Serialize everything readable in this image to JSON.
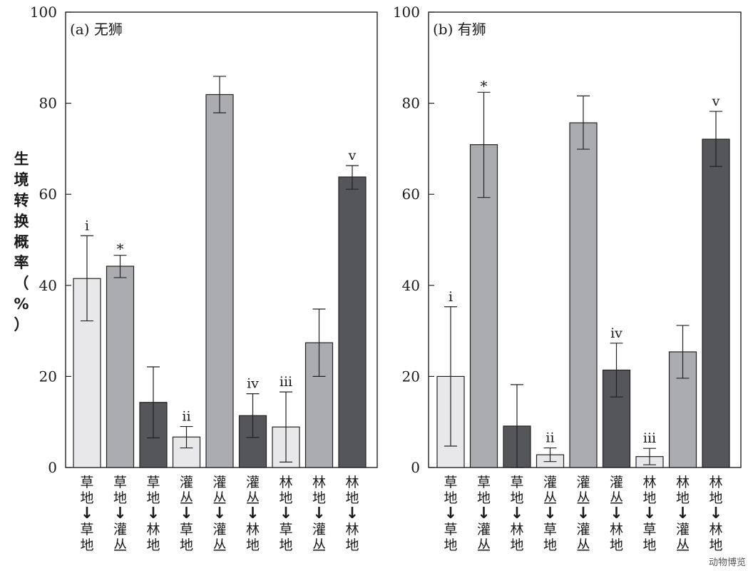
{
  "chart_data": {
    "type": "bar",
    "ylabel": "生境转换概率（%）",
    "ylim": [
      0,
      100
    ],
    "yticks": [
      0,
      20,
      40,
      60,
      80,
      100
    ],
    "categories": [
      "草地→草地",
      "草地→灌丛",
      "草地→林地",
      "灌丛→草地",
      "灌丛→灌丛",
      "灌丛→林地",
      "林地→草地",
      "林地→灌丛",
      "林地→林地"
    ],
    "category_lines": [
      [
        "草",
        "地",
        "草",
        "地"
      ],
      [
        "草",
        "地",
        "灌",
        "丛"
      ],
      [
        "草",
        "地",
        "林",
        "地"
      ],
      [
        "灌",
        "丛",
        "草",
        "地"
      ],
      [
        "灌",
        "丛",
        "灌",
        "丛"
      ],
      [
        "灌",
        "丛",
        "林",
        "地"
      ],
      [
        "林",
        "地",
        "草",
        "地"
      ],
      [
        "林",
        "地",
        "灌",
        "丛"
      ],
      [
        "林",
        "地",
        "林",
        "地"
      ]
    ],
    "colors": {
      "to_grass": "#e8e8ea",
      "to_shrub": "#abacb0",
      "to_forest": "#54565a",
      "edge": "#222222"
    },
    "bar_tones": [
      "to_grass",
      "to_shrub",
      "to_forest",
      "to_grass",
      "to_shrub",
      "to_forest",
      "to_grass",
      "to_shrub",
      "to_forest"
    ],
    "panels": [
      {
        "title": "(a) 无狮",
        "values": [
          41.5,
          44.2,
          14.3,
          6.7,
          81.9,
          11.4,
          8.9,
          27.4,
          63.8
        ],
        "err_low": [
          32.2,
          41.7,
          6.5,
          4.3,
          77.9,
          6.6,
          1.2,
          20.0,
          61.1
        ],
        "err_high": [
          50.9,
          46.6,
          22.1,
          9.0,
          85.9,
          16.2,
          16.6,
          34.8,
          66.3
        ],
        "annotations": [
          "i",
          "*",
          "",
          "ii",
          "",
          "iv",
          "iii",
          "",
          "v"
        ]
      },
      {
        "title": "(b) 有狮",
        "values": [
          20.0,
          70.9,
          9.1,
          2.8,
          75.7,
          21.4,
          2.4,
          25.4,
          72.1
        ],
        "err_low": [
          4.7,
          59.3,
          0.0,
          1.3,
          69.9,
          15.5,
          0.6,
          19.6,
          66.1
        ],
        "err_high": [
          35.3,
          82.4,
          18.2,
          4.3,
          81.6,
          27.3,
          4.2,
          31.2,
          78.2
        ],
        "annotations": [
          "i",
          "*",
          "",
          "ii",
          "",
          "iv",
          "iii",
          "",
          "v"
        ]
      }
    ],
    "arrow_glyph": "↓"
  },
  "watermark": "动物博览"
}
